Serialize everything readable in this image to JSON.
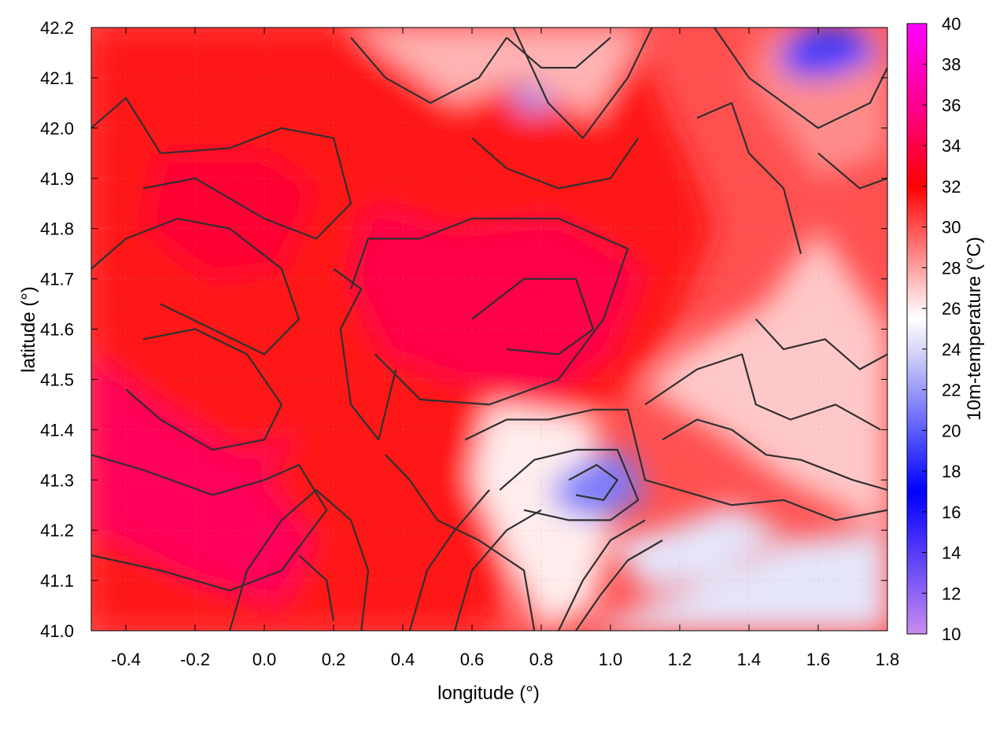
{
  "chart_data": {
    "type": "heatmap",
    "title": "",
    "xlabel": "longitude (°)",
    "ylabel": "latitude (°)",
    "colorbar_label": "10m-temperature (°C)",
    "xlim": [
      -0.5,
      1.8
    ],
    "ylim": [
      41.0,
      42.2
    ],
    "x_ticks": [
      "-0.4",
      "-0.2",
      "0.0",
      "0.2",
      "0.4",
      "0.6",
      "0.8",
      "1.0",
      "1.2",
      "1.4",
      "1.6",
      "1.8"
    ],
    "y_ticks": [
      "41.0",
      "41.1",
      "41.2",
      "41.3",
      "41.4",
      "41.5",
      "41.6",
      "41.7",
      "41.8",
      "41.9",
      "42.0",
      "42.1",
      "42.2"
    ],
    "colorbar_range": [
      10,
      40
    ],
    "colorbar_ticks": [
      "10",
      "12",
      "14",
      "16",
      "18",
      "20",
      "22",
      "24",
      "26",
      "28",
      "30",
      "32",
      "34",
      "36",
      "38",
      "40"
    ],
    "colorbar_stops": [
      {
        "value": 10,
        "color": "#c88cf0"
      },
      {
        "value": 17,
        "color": "#0000ff"
      },
      {
        "value": 24,
        "color": "#d8d8f8"
      },
      {
        "value": 25.5,
        "color": "#ffffff"
      },
      {
        "value": 27,
        "color": "#ffc8c8"
      },
      {
        "value": 32,
        "color": "#ff0000"
      },
      {
        "value": 36,
        "color": "#ff0090"
      },
      {
        "value": 40,
        "color": "#ff00ff"
      }
    ],
    "grid": true,
    "contours": true,
    "legend": "colorbar-right",
    "regions": [
      {
        "value": 31.5,
        "points": [
          [
            -0.5,
            42.2
          ],
          [
            1.05,
            42.2
          ],
          [
            1.25,
            41.9
          ],
          [
            1.3,
            41.8
          ],
          [
            1.15,
            41.55
          ],
          [
            0.95,
            41.42
          ],
          [
            0.78,
            41.22
          ],
          [
            0.65,
            41.0
          ],
          [
            -0.5,
            41.0
          ]
        ]
      },
      {
        "value": 34.5,
        "points": [
          [
            -0.5,
            41.55
          ],
          [
            -0.3,
            41.45
          ],
          [
            -0.05,
            41.35
          ],
          [
            0.1,
            41.4
          ],
          [
            0.0,
            41.3
          ],
          [
            0.15,
            41.18
          ],
          [
            0.05,
            41.05
          ],
          [
            -0.2,
            41.1
          ],
          [
            -0.5,
            41.2
          ]
        ]
      },
      {
        "value": 34,
        "points": [
          [
            0.3,
            41.85
          ],
          [
            0.55,
            41.8
          ],
          [
            0.85,
            41.82
          ],
          [
            1.1,
            41.72
          ],
          [
            1.0,
            41.55
          ],
          [
            0.8,
            41.45
          ],
          [
            0.55,
            41.5
          ],
          [
            0.35,
            41.55
          ],
          [
            0.25,
            41.7
          ]
        ]
      },
      {
        "value": 33.5,
        "points": [
          [
            -0.3,
            41.95
          ],
          [
            0.0,
            41.95
          ],
          [
            0.15,
            41.88
          ],
          [
            0.05,
            41.72
          ],
          [
            -0.15,
            41.7
          ],
          [
            -0.35,
            41.8
          ]
        ]
      },
      {
        "value": 27.5,
        "points": [
          [
            0.25,
            42.2
          ],
          [
            0.55,
            42.05
          ],
          [
            0.75,
            42.1
          ],
          [
            0.95,
            42.02
          ],
          [
            1.1,
            42.2
          ]
        ]
      },
      {
        "value": 27,
        "points": [
          [
            1.2,
            41.55
          ],
          [
            1.45,
            41.65
          ],
          [
            1.6,
            41.8
          ],
          [
            1.8,
            41.6
          ],
          [
            1.8,
            41.2
          ],
          [
            1.5,
            41.3
          ],
          [
            1.3,
            41.4
          ],
          [
            1.1,
            41.48
          ]
        ]
      },
      {
        "value": 28.5,
        "points": [
          [
            1.4,
            42.1
          ],
          [
            1.6,
            41.9
          ],
          [
            1.8,
            41.95
          ],
          [
            1.8,
            42.2
          ],
          [
            1.45,
            42.2
          ]
        ]
      },
      {
        "value": 26,
        "points": [
          [
            0.65,
            41.45
          ],
          [
            0.95,
            41.42
          ],
          [
            1.0,
            41.2
          ],
          [
            0.95,
            41.05
          ],
          [
            0.8,
            41.0
          ],
          [
            0.7,
            41.15
          ],
          [
            0.6,
            41.3
          ]
        ]
      },
      {
        "value": 24.5,
        "points": [
          [
            0.92,
            41.0
          ],
          [
            1.1,
            41.05
          ],
          [
            1.3,
            41.1
          ],
          [
            1.5,
            41.18
          ],
          [
            1.8,
            41.2
          ],
          [
            1.8,
            41.0
          ]
        ]
      },
      {
        "value": 24.5,
        "points": [
          [
            1.0,
            41.18
          ],
          [
            1.15,
            41.2
          ],
          [
            1.35,
            41.25
          ],
          [
            1.5,
            41.2
          ],
          [
            1.3,
            41.1
          ],
          [
            1.1,
            41.08
          ]
        ]
      },
      {
        "value": 21,
        "points": [
          [
            0.82,
            41.28
          ],
          [
            0.92,
            41.34
          ],
          [
            1.05,
            41.36
          ],
          [
            1.1,
            41.26
          ],
          [
            0.96,
            41.22
          ],
          [
            0.86,
            41.24
          ]
        ]
      },
      {
        "value": 19,
        "points": [
          [
            1.48,
            42.15
          ],
          [
            1.55,
            42.2
          ],
          [
            1.72,
            42.2
          ],
          [
            1.78,
            42.14
          ],
          [
            1.64,
            42.1
          ],
          [
            1.52,
            42.1
          ]
        ]
      },
      {
        "value": 22,
        "points": [
          [
            0.7,
            42.08
          ],
          [
            0.8,
            42.08
          ],
          [
            0.85,
            42.04
          ],
          [
            0.75,
            42.03
          ]
        ]
      }
    ],
    "contour_lines": [
      [
        [
          -0.5,
          41.35
        ],
        [
          -0.35,
          41.32
        ],
        [
          -0.15,
          41.27
        ],
        [
          0.0,
          41.3
        ],
        [
          0.1,
          41.33
        ],
        [
          0.18,
          41.24
        ],
        [
          0.05,
          41.12
        ],
        [
          -0.1,
          41.08
        ],
        [
          -0.3,
          41.12
        ],
        [
          -0.5,
          41.15
        ]
      ],
      [
        [
          -0.4,
          41.48
        ],
        [
          -0.3,
          41.42
        ],
        [
          -0.15,
          41.36
        ],
        [
          0.0,
          41.38
        ],
        [
          0.05,
          41.45
        ],
        [
          -0.05,
          41.55
        ],
        [
          -0.2,
          41.6
        ],
        [
          -0.35,
          41.58
        ]
      ],
      [
        [
          -0.5,
          41.72
        ],
        [
          -0.4,
          41.78
        ],
        [
          -0.25,
          41.82
        ],
        [
          -0.1,
          41.8
        ],
        [
          0.05,
          41.72
        ],
        [
          0.1,
          41.62
        ],
        [
          0.0,
          41.55
        ],
        [
          -0.15,
          41.6
        ],
        [
          -0.3,
          41.65
        ]
      ],
      [
        [
          0.25,
          41.68
        ],
        [
          0.3,
          41.78
        ],
        [
          0.45,
          41.78
        ],
        [
          0.6,
          41.82
        ],
        [
          0.85,
          41.82
        ],
        [
          1.05,
          41.76
        ],
        [
          0.98,
          41.62
        ],
        [
          0.85,
          41.5
        ],
        [
          0.65,
          41.45
        ],
        [
          0.45,
          41.46
        ],
        [
          0.32,
          41.55
        ]
      ],
      [
        [
          0.6,
          41.62
        ],
        [
          0.75,
          41.7
        ],
        [
          0.9,
          41.7
        ],
        [
          0.95,
          41.6
        ],
        [
          0.85,
          41.55
        ],
        [
          0.7,
          41.56
        ]
      ],
      [
        [
          0.2,
          41.72
        ],
        [
          0.28,
          41.68
        ],
        [
          0.22,
          41.6
        ],
        [
          0.25,
          41.45
        ],
        [
          0.33,
          41.38
        ],
        [
          0.38,
          41.52
        ]
      ],
      [
        [
          -0.5,
          42.0
        ],
        [
          -0.4,
          42.06
        ],
        [
          -0.3,
          41.95
        ],
        [
          -0.1,
          41.96
        ],
        [
          0.05,
          42.0
        ],
        [
          0.2,
          41.98
        ],
        [
          0.25,
          41.85
        ],
        [
          0.15,
          41.78
        ],
        [
          0.0,
          41.82
        ],
        [
          -0.2,
          41.9
        ],
        [
          -0.35,
          41.88
        ]
      ],
      [
        [
          0.25,
          42.18
        ],
        [
          0.35,
          42.1
        ],
        [
          0.48,
          42.05
        ],
        [
          0.62,
          42.1
        ],
        [
          0.7,
          42.18
        ]
      ],
      [
        [
          0.72,
          42.2
        ],
        [
          0.82,
          42.05
        ],
        [
          0.92,
          41.98
        ],
        [
          1.05,
          42.1
        ],
        [
          1.12,
          42.2
        ]
      ],
      [
        [
          0.6,
          41.98
        ],
        [
          0.7,
          41.92
        ],
        [
          0.85,
          41.88
        ],
        [
          1.0,
          41.9
        ],
        [
          1.08,
          41.98
        ]
      ],
      [
        [
          0.7,
          42.18
        ],
        [
          0.8,
          42.12
        ],
        [
          0.9,
          42.12
        ],
        [
          1.0,
          42.18
        ]
      ],
      [
        [
          1.3,
          42.2
        ],
        [
          1.4,
          42.1
        ],
        [
          1.5,
          42.05
        ],
        [
          1.6,
          42.0
        ],
        [
          1.75,
          42.05
        ],
        [
          1.8,
          42.12
        ]
      ],
      [
        [
          1.25,
          42.02
        ],
        [
          1.35,
          42.05
        ],
        [
          1.4,
          41.95
        ],
        [
          1.5,
          41.88
        ],
        [
          1.55,
          41.75
        ]
      ],
      [
        [
          1.6,
          41.95
        ],
        [
          1.72,
          41.88
        ],
        [
          1.8,
          41.9
        ]
      ],
      [
        [
          1.42,
          41.62
        ],
        [
          1.5,
          41.56
        ],
        [
          1.62,
          41.58
        ],
        [
          1.72,
          41.52
        ],
        [
          1.8,
          41.55
        ]
      ],
      [
        [
          1.1,
          41.45
        ],
        [
          1.25,
          41.52
        ],
        [
          1.38,
          41.55
        ],
        [
          1.42,
          41.45
        ],
        [
          1.52,
          41.42
        ],
        [
          1.65,
          41.45
        ],
        [
          1.78,
          41.4
        ]
      ],
      [
        [
          1.15,
          41.38
        ],
        [
          1.25,
          41.42
        ],
        [
          1.35,
          41.4
        ],
        [
          1.45,
          41.35
        ],
        [
          1.55,
          41.34
        ],
        [
          1.7,
          41.3
        ],
        [
          1.8,
          41.28
        ]
      ],
      [
        [
          0.58,
          41.38
        ],
        [
          0.7,
          41.42
        ],
        [
          0.82,
          41.42
        ],
        [
          0.95,
          41.44
        ],
        [
          1.05,
          41.44
        ],
        [
          1.1,
          41.3
        ],
        [
          1.2,
          41.28
        ],
        [
          1.35,
          41.25
        ],
        [
          1.5,
          41.26
        ],
        [
          1.65,
          41.22
        ],
        [
          1.8,
          41.24
        ]
      ],
      [
        [
          0.68,
          41.28
        ],
        [
          0.78,
          41.34
        ],
        [
          0.9,
          41.36
        ],
        [
          1.02,
          41.36
        ],
        [
          1.08,
          41.26
        ],
        [
          1.0,
          41.22
        ],
        [
          0.88,
          41.22
        ],
        [
          0.75,
          41.24
        ]
      ],
      [
        [
          0.88,
          41.3
        ],
        [
          0.96,
          41.33
        ],
        [
          1.02,
          41.3
        ],
        [
          0.98,
          41.26
        ],
        [
          0.9,
          41.27
        ]
      ],
      [
        [
          0.55,
          41.0
        ],
        [
          0.6,
          41.12
        ],
        [
          0.7,
          41.2
        ],
        [
          0.8,
          41.24
        ]
      ],
      [
        [
          0.42,
          41.0
        ],
        [
          0.47,
          41.12
        ],
        [
          0.55,
          41.2
        ],
        [
          0.65,
          41.28
        ]
      ],
      [
        [
          0.85,
          41.0
        ],
        [
          0.92,
          41.1
        ],
        [
          1.0,
          41.18
        ],
        [
          1.1,
          41.22
        ]
      ],
      [
        [
          0.9,
          41.0
        ],
        [
          0.97,
          41.07
        ],
        [
          1.05,
          41.14
        ],
        [
          1.15,
          41.18
        ]
      ],
      [
        [
          0.35,
          41.35
        ],
        [
          0.42,
          41.3
        ],
        [
          0.5,
          41.22
        ],
        [
          0.62,
          41.18
        ],
        [
          0.75,
          41.12
        ],
        [
          0.78,
          41.0
        ]
      ],
      [
        [
          0.1,
          41.15
        ],
        [
          0.18,
          41.1
        ],
        [
          0.2,
          41.02
        ]
      ],
      [
        [
          -0.1,
          41.0
        ],
        [
          -0.05,
          41.12
        ],
        [
          0.05,
          41.22
        ],
        [
          0.15,
          41.28
        ],
        [
          0.25,
          41.22
        ],
        [
          0.3,
          41.12
        ],
        [
          0.28,
          41.0
        ]
      ]
    ]
  }
}
